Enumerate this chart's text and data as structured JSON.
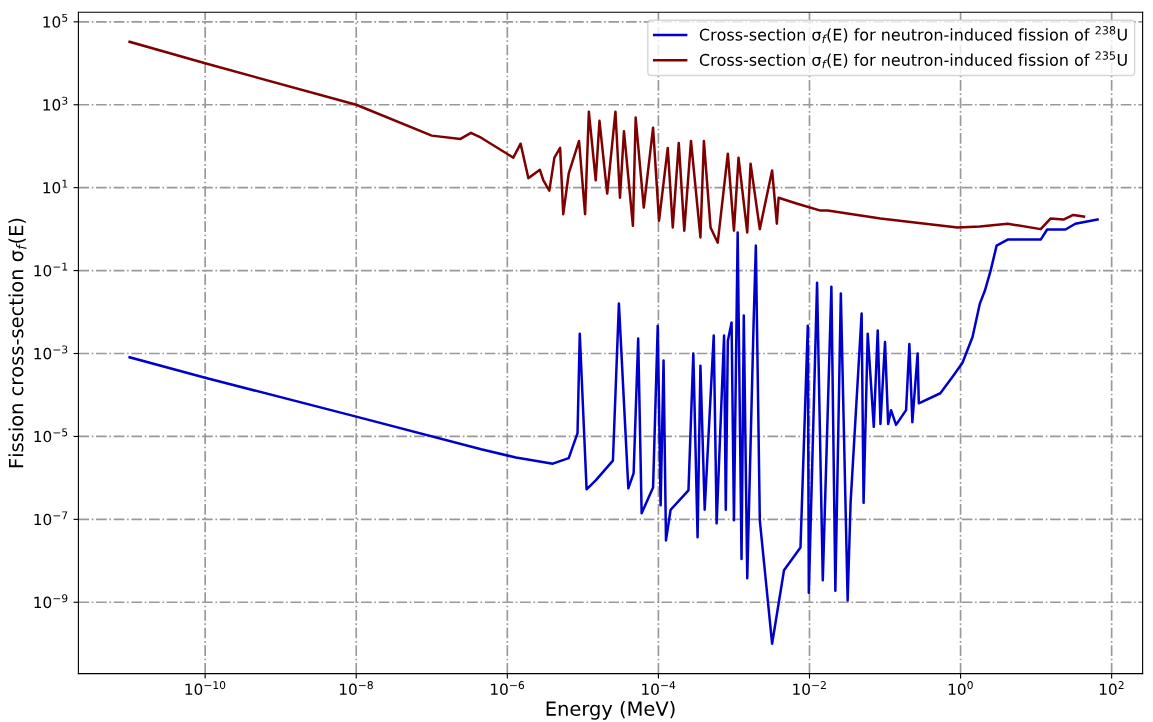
{
  "chart_data": {
    "type": "line",
    "xlabel": "Energy (MeV)",
    "ylabel": "Fission cross-section σ$_{f}$(E)",
    "log": "xy",
    "grid": true,
    "legend": "top right",
    "line_style": "solid",
    "marker": "none",
    "xlim": [
      2.1e-12,
      257
    ],
    "ylim": [
      1.9e-11,
      170000.0
    ],
    "xticks": [
      {
        "value": 1e-10,
        "label": "10$^{−10}$"
      },
      {
        "value": 1e-08,
        "label": "10$^{−8}$"
      },
      {
        "value": 1e-06,
        "label": "10$^{−6}$"
      },
      {
        "value": 0.0001,
        "label": "10$^{−4}$"
      },
      {
        "value": 0.01,
        "label": "10$^{−2}$"
      },
      {
        "value": 1,
        "label": "10$^{0}$"
      },
      {
        "value": 100,
        "label": "10$^{2}$"
      }
    ],
    "yticks": [
      {
        "value": 1e-09,
        "label": "10$^{−9}$"
      },
      {
        "value": 1e-07,
        "label": "10$^{−7}$"
      },
      {
        "value": 1e-05,
        "label": "10$^{−5}$"
      },
      {
        "value": 0.001,
        "label": "10$^{−3}$"
      },
      {
        "value": 0.1,
        "label": "10$^{−1}$"
      },
      {
        "value": 10,
        "label": "10$^{1}$"
      },
      {
        "value": 1000,
        "label": "10$^{3}$"
      },
      {
        "value": 100000,
        "label": "10$^{5}$"
      }
    ],
    "series": [
      {
        "name": "Cross-section σ$_{f}$(E) for neutron-induced fission of $^{238}$U",
        "color": "#0000cd",
        "x": [
          1e-11,
          1e-10,
          1e-08,
          4.5e-07,
          1.3e-06,
          4e-06,
          6.5e-06,
          8.5e-06,
          9.1e-06,
          1.12e-05,
          1.48e-05,
          2.5e-05,
          3e-05,
          4e-05,
          4.7e-05,
          5.4e-05,
          6e-05,
          8.5e-05,
          9.8e-05,
          0.000107,
          0.000117,
          0.000126,
          0.000145,
          0.00025,
          0.00029,
          0.00033,
          0.00036,
          0.00041,
          0.00054,
          0.00059,
          0.00074,
          0.00078,
          0.00083,
          0.00093,
          0.001,
          0.00112,
          0.00126,
          0.00135,
          0.0015,
          0.00182,
          0.00195,
          0.0022,
          0.0032,
          0.0046,
          0.0076,
          0.0095,
          0.0098,
          0.0126,
          0.015,
          0.0195,
          0.022,
          0.026,
          0.032,
          0.035,
          0.049,
          0.052,
          0.059,
          0.071,
          0.08,
          0.087,
          0.1,
          0.11,
          0.12,
          0.14,
          0.19,
          0.21,
          0.23,
          0.27,
          0.28,
          0.54,
          0.81,
          1.06,
          1.44,
          1.8,
          2.1,
          2.5,
          3.0,
          4.2,
          11.5,
          14,
          24.5,
          33,
          65
        ],
        "values": [
          0.00081,
          0.00026,
          3e-05,
          4.9e-06,
          3.1e-06,
          2.2e-06,
          3e-06,
          1.2e-05,
          0.003,
          5.3e-07,
          8.7e-07,
          2.6e-06,
          0.016,
          5.6e-07,
          1.3e-06,
          0.0023,
          1.4e-07,
          5.9e-07,
          0.0047,
          2.2e-07,
          0.00068,
          3.1e-08,
          1.7e-07,
          5e-07,
          0.001,
          3.7e-08,
          0.00051,
          1.7e-07,
          0.0027,
          8e-08,
          0.0027,
          1.7e-07,
          0.002,
          0.0056,
          9.5e-08,
          0.83,
          1.1e-08,
          0.0083,
          3.8e-09,
          0.0053,
          0.4,
          9.5e-08,
          1e-10,
          5.9e-09,
          2.1e-08,
          0.0047,
          1.7e-09,
          0.051,
          3.4e-09,
          0.041,
          1.9e-09,
          0.028,
          1.1e-09,
          2.5e-07,
          0.0092,
          2.5e-07,
          0.003,
          1.7e-05,
          0.0036,
          2e-05,
          0.0019,
          2e-05,
          4.3e-05,
          1.9e-05,
          4.3e-05,
          0.0017,
          2.2e-05,
          0.001,
          6.3e-05,
          0.00011,
          0.0003,
          0.0006,
          0.0025,
          0.016,
          0.033,
          0.1,
          0.4,
          0.56,
          0.56,
          0.98,
          0.98,
          1.35,
          1.7
        ]
      },
      {
        "name": "Cross-section σ$_{f}$(E) for neutron-induced fission of $^{235}$U",
        "color": "#7f0000",
        "x": [
          1e-11,
          1e-10,
          1e-08,
          1e-07,
          2.4e-07,
          3.3e-07,
          4.5e-07,
          1.2e-06,
          1.5e-06,
          1.9e-06,
          2.7e-06,
          3e-06,
          3.6e-06,
          4.2e-06,
          5e-06,
          5.5e-06,
          6.5e-06,
          8.9e-06,
          1.07e-05,
          1.2e-05,
          1.48e-05,
          1.66e-05,
          2.1e-05,
          2.7e-05,
          3.1e-05,
          3.5e-05,
          4.6e-05,
          5e-05,
          6.4e-05,
          8.5e-05,
          0.000102,
          0.000133,
          0.000155,
          0.000186,
          0.00022,
          0.00027,
          0.00036,
          0.0004,
          0.00049,
          0.00061,
          0.00083,
          0.001,
          0.00115,
          0.0015,
          0.00166,
          0.0022,
          0.0032,
          0.0037,
          0.0039,
          0.0069,
          0.014,
          0.0174,
          0.087,
          0.91,
          1.8,
          4.2,
          11.5,
          15.5,
          23,
          31,
          43
        ],
        "values": [
          33000.0,
          10000.0,
          1000,
          180,
          150,
          210,
          160,
          53,
          115,
          17,
          27,
          15,
          8.5,
          53,
          91,
          2.3,
          22,
          134,
          2.3,
          680,
          15,
          410,
          7.2,
          680,
          5.7,
          230,
          1.2,
          490,
          3.3,
          280,
          1.6,
          91,
          1.1,
          120,
          0.92,
          134,
          0.63,
          134,
          1.1,
          0.47,
          66,
          0.92,
          53,
          0.83,
          38,
          1.0,
          26,
          1.35,
          5.7,
          4.1,
          2.8,
          2.8,
          1.8,
          1.1,
          1.15,
          1.35,
          1.0,
          1.8,
          1.7,
          2.2,
          2.0
        ]
      }
    ]
  }
}
